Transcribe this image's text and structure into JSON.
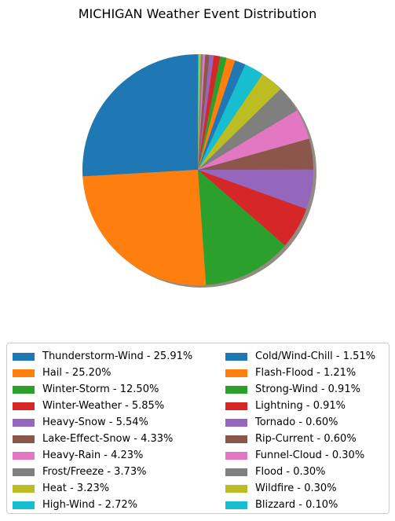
{
  "chart_data": {
    "type": "pie",
    "title": "MICHIGAN Weather Event Distribution",
    "shadow": true,
    "start_angle_deg": 90,
    "direction": "counterclockwise",
    "legend_placement": "below",
    "legend_columns": 2,
    "slices": [
      {
        "label": "Thunderstorm-Wind - 25.91%",
        "value": 25.91,
        "color": "#1f77b4"
      },
      {
        "label": "Hail - 25.20%",
        "value": 25.2,
        "color": "#ff7f0e"
      },
      {
        "label": "Winter-Storm - 12.50%",
        "value": 12.5,
        "color": "#2ca02c"
      },
      {
        "label": "Winter-Weather - 5.85%",
        "value": 5.85,
        "color": "#d62728"
      },
      {
        "label": "Heavy-Snow - 5.54%",
        "value": 5.54,
        "color": "#9467bd"
      },
      {
        "label": "Lake-Effect-Snow - 4.33%",
        "value": 4.33,
        "color": "#8c564b"
      },
      {
        "label": "Heavy-Rain - 4.23%",
        "value": 4.23,
        "color": "#e377c2"
      },
      {
        "label": "Frost/Freeze - 3.73%",
        "value": 3.73,
        "color": "#7f7f7f"
      },
      {
        "label": "Heat - 3.23%",
        "value": 3.23,
        "color": "#bcbd22"
      },
      {
        "label": "High-Wind - 2.72%",
        "value": 2.72,
        "color": "#17becf"
      },
      {
        "label": "Cold/Wind-Chill - 1.51%",
        "value": 1.51,
        "color": "#1f77b4"
      },
      {
        "label": "Flash-Flood - 1.21%",
        "value": 1.21,
        "color": "#ff7f0e"
      },
      {
        "label": "Strong-Wind - 0.91%",
        "value": 0.91,
        "color": "#2ca02c"
      },
      {
        "label": "Lightning - 0.91%",
        "value": 0.91,
        "color": "#d62728"
      },
      {
        "label": "Tornado - 0.60%",
        "value": 0.6,
        "color": "#9467bd"
      },
      {
        "label": "Rip-Current - 0.60%",
        "value": 0.6,
        "color": "#8c564b"
      },
      {
        "label": "Funnel-Cloud - 0.30%",
        "value": 0.3,
        "color": "#e377c2"
      },
      {
        "label": "Flood - 0.30%",
        "value": 0.3,
        "color": "#7f7f7f"
      },
      {
        "label": "Wildfire - 0.30%",
        "value": 0.3,
        "color": "#bcbd22"
      },
      {
        "label": "Blizzard - 0.10%",
        "value": 0.1,
        "color": "#17becf"
      }
    ]
  }
}
